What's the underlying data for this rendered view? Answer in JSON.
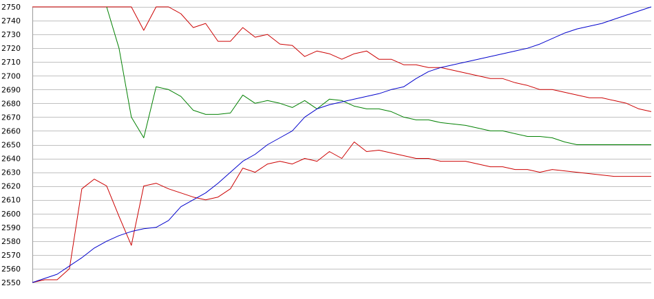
{
  "chart_data": {
    "type": "line",
    "title": "",
    "xlabel": "",
    "ylabel": "",
    "ylim": [
      2550,
      2750
    ],
    "yticks": [
      2550,
      2560,
      2570,
      2580,
      2590,
      2600,
      2610,
      2620,
      2630,
      2640,
      2650,
      2660,
      2670,
      2680,
      2690,
      2700,
      2710,
      2720,
      2730,
      2740,
      2750
    ],
    "yticks_labels": [
      "2550",
      "2560",
      "2570",
      "2580",
      "2590",
      "2600",
      "2610",
      "2620",
      "2630",
      "2640",
      "2650",
      "2660",
      "2670",
      "2680",
      "2690",
      "2700",
      "2710",
      "2720",
      "2730",
      "2740",
      "2750"
    ],
    "grid": true,
    "legend": "none",
    "x": [
      0,
      4,
      8,
      12,
      16,
      20,
      24,
      28,
      32,
      36,
      40,
      44,
      48,
      52,
      56,
      60,
      64,
      68,
      72,
      76,
      80,
      84,
      88,
      92,
      96,
      100,
      104,
      108,
      112,
      116,
      120,
      124,
      128,
      132,
      136,
      140,
      144,
      148,
      152,
      156,
      160,
      164,
      168,
      172,
      176,
      180,
      184,
      188,
      192,
      196,
      200
    ],
    "series": [
      {
        "color": "#cc0000",
        "values": [
          2750,
          2750,
          2750,
          2750,
          2750,
          2750,
          2750,
          2750,
          2750,
          2733,
          2750,
          2750,
          2745,
          2735,
          2738,
          2725,
          2725,
          2735,
          2728,
          2730,
          2723,
          2722,
          2714,
          2718,
          2716,
          2712,
          2716,
          2718,
          2712,
          2712,
          2708,
          2708,
          2706,
          2706,
          2704,
          2702,
          2700,
          2698,
          2698,
          2695,
          2693,
          2690,
          2690,
          2688,
          2686,
          2684,
          2684,
          2682,
          2680,
          2676,
          2674
        ]
      },
      {
        "color": "#008000",
        "values": [
          null,
          null,
          null,
          null,
          null,
          null,
          2750,
          2720,
          2670,
          2655,
          2692,
          2690,
          2685,
          2675,
          2672,
          2672,
          2673,
          2686,
          2680,
          2682,
          2680,
          2677,
          2682,
          2676,
          2683,
          2682,
          2678,
          2676,
          2676,
          2674,
          2670,
          2668,
          2668,
          2666,
          2665,
          2664,
          2662,
          2660,
          2660,
          2658,
          2656,
          2656,
          2655,
          2652,
          2650,
          2650,
          2650,
          2650,
          2650,
          2650,
          2650
        ]
      },
      {
        "color": "#cc0000",
        "values": [
          2550,
          2552,
          2552,
          2560,
          2618,
          2625,
          2620,
          2598,
          2577,
          2620,
          2622,
          2618,
          2615,
          2612,
          2610,
          2612,
          2618,
          2633,
          2630,
          2636,
          2638,
          2636,
          2640,
          2638,
          2645,
          2640,
          2652,
          2645,
          2646,
          2644,
          2642,
          2640,
          2640,
          2638,
          2638,
          2638,
          2636,
          2634,
          2634,
          2632,
          2632,
          2630,
          2632,
          2631,
          2630,
          2629,
          2628,
          2627,
          2627,
          2627,
          2627
        ]
      },
      {
        "color": "#0000cc",
        "values": [
          2550,
          2553,
          2556,
          2562,
          2568,
          2575,
          2580,
          2584,
          2587,
          2589,
          2590,
          2595,
          2605,
          2610,
          2615,
          2622,
          2630,
          2638,
          2643,
          2650,
          2655,
          2660,
          2670,
          2676,
          2679,
          2681,
          2683,
          2685,
          2687,
          2690,
          2692,
          2698,
          2703,
          2706,
          2708,
          2710,
          2712,
          2714,
          2716,
          2718,
          2720,
          2723,
          2727,
          2731,
          2734,
          2736,
          2738,
          2741,
          2744,
          2747,
          2750
        ]
      }
    ]
  }
}
